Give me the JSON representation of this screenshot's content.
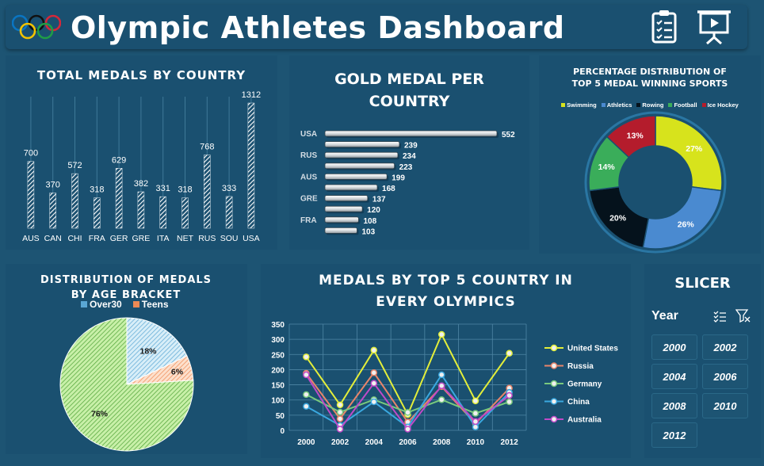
{
  "header": {
    "title": "Olympic Athletes Dashboard",
    "clipboard_icon": "clipboard-checklist-icon",
    "presentation_icon": "presentation-board-icon"
  },
  "colors": {
    "background": "#1d5473",
    "panel": "#1a5070",
    "yellow": "#d7e31c",
    "blue": "#4a8ad0",
    "green": "#3aad5a",
    "red": "#b41c2c",
    "black": "#05121c"
  },
  "chart_data": [
    {
      "id": "total_medals",
      "type": "bar",
      "title": "TOTAL MEDALS BY COUNTRY",
      "categories": [
        "AUS",
        "CAN",
        "CHI",
        "FRA",
        "GER",
        "GRE",
        "ITA",
        "NET",
        "RUS",
        "SOU",
        "USA"
      ],
      "values": [
        700,
        370,
        572,
        318,
        629,
        382,
        331,
        318,
        768,
        333,
        1312
      ],
      "ylim": [
        0,
        1312
      ]
    },
    {
      "id": "gold_medals",
      "type": "bar",
      "orientation": "horizontal",
      "title": "GOLD MEDAL PER COUNTRY",
      "categories": [
        "USA",
        "",
        "RUS",
        "",
        "AUS",
        "",
        "GRE",
        "",
        "FRA",
        ""
      ],
      "values": [
        552,
        239,
        234,
        223,
        199,
        168,
        137,
        120,
        108,
        103
      ]
    },
    {
      "id": "sports_distribution",
      "type": "pie",
      "title": "PERCENTAGE DISTRIBUTION OF TOP 5 MEDAL WINNING SPORTS",
      "labels": [
        "Swimming",
        "Athletics",
        "Rowing",
        "Football",
        "Ice Hockey"
      ],
      "values": [
        27,
        26,
        20,
        14,
        13
      ],
      "value_labels": [
        "27%",
        "26%",
        "20%",
        "14%",
        "13%"
      ],
      "colors": [
        "#d7e31c",
        "#4a8ad0",
        "#05121c",
        "#3aad5a",
        "#b41c2c"
      ],
      "donut": true,
      "legend": "top"
    },
    {
      "id": "age_bracket",
      "type": "pie",
      "title": "DISTRIBUTION OF MEDALS BY AGE BRACKET",
      "legend_labels": [
        "Over30",
        "Teens"
      ],
      "values": [
        76,
        18,
        6
      ],
      "value_labels": [
        "76%",
        "18%",
        "6%"
      ],
      "colors": [
        "#9be27a",
        "#9fd6f1",
        "#f4a87e"
      ],
      "legend": "top"
    },
    {
      "id": "top5_olympics",
      "type": "line",
      "title": "MEDALS BY TOP 5 COUNTRY IN EVERY OLYMPICS",
      "x": [
        "2000",
        "2002",
        "2004",
        "2006",
        "2008",
        "2010",
        "2012"
      ],
      "ylim": [
        0,
        350
      ],
      "yticks": [
        0,
        50,
        100,
        150,
        200,
        250,
        300,
        350
      ],
      "grid": true,
      "legend": "right",
      "series": [
        {
          "name": "United States",
          "color": "#e3ee3a",
          "values": [
            242,
            84,
            264,
            52,
            316,
            97,
            254
          ]
        },
        {
          "name": "Russia",
          "color": "#e8846a",
          "values": [
            188,
            38,
            190,
            27,
            144,
            22,
            139
          ]
        },
        {
          "name": "Germany",
          "color": "#79c97e",
          "values": [
            118,
            60,
            101,
            59,
            101,
            56,
            94
          ]
        },
        {
          "name": "China",
          "color": "#3aa8e0",
          "values": [
            79,
            16,
            94,
            11,
            183,
            11,
            125
          ]
        },
        {
          "name": "Australia",
          "color": "#c04ac8",
          "values": [
            183,
            4,
            155,
            4,
            147,
            29,
            115
          ]
        }
      ]
    }
  ],
  "slicer": {
    "title": "SLICER",
    "field_label": "Year",
    "multi_select_icon": "multi-select-icon",
    "clear_filter_icon": "clear-filter-icon",
    "items": [
      "2000",
      "2002",
      "2004",
      "2006",
      "2008",
      "2010",
      "2012"
    ]
  }
}
